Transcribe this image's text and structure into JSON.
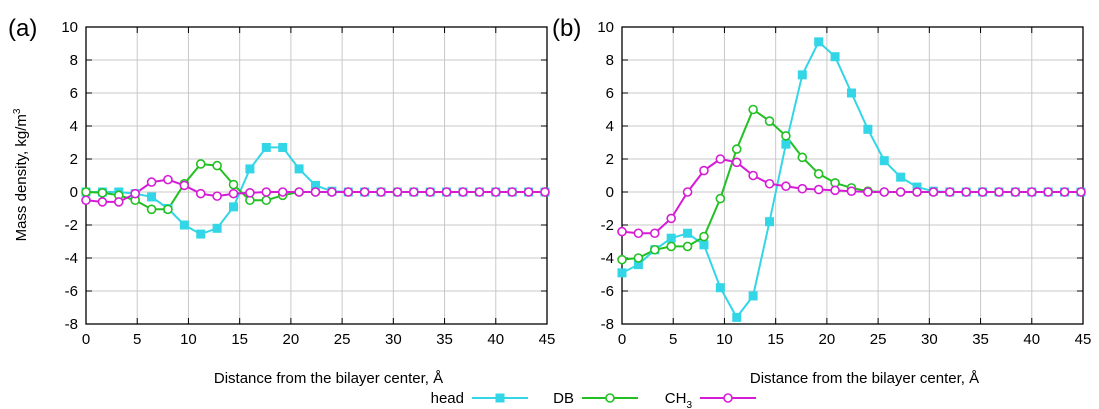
{
  "figure": {
    "ylabel": "Mass density, kg/m",
    "ylabel_sup": "3",
    "legend": [
      {
        "label": "head",
        "sub": ""
      },
      {
        "label": "DB",
        "sub": ""
      },
      {
        "label": "CH",
        "sub": "3"
      }
    ]
  },
  "chart_data": [
    {
      "type": "line",
      "panel_label": "(a)",
      "xlabel": "Distance from the bilayer center, Å",
      "ylabel": "Mass density, kg/m3",
      "xlim": [
        0,
        45
      ],
      "ylim": [
        -8,
        10
      ],
      "xticks": [
        "0",
        "5",
        "10",
        "15",
        "20",
        "25",
        "30",
        "35",
        "40",
        "45"
      ],
      "yticks": [
        "-8",
        "-6",
        "-4",
        "-2",
        "0",
        "2",
        "4",
        "6",
        "8",
        "10"
      ],
      "grid": true,
      "legend_position": "bottom-center",
      "series": [
        {
          "name": "head",
          "color": "#33d6e6",
          "marker": "filled-square",
          "x": [
            0,
            1.6,
            3.2,
            4.8,
            6.4,
            8,
            9.6,
            11.2,
            12.8,
            14.4,
            16,
            17.6,
            19.2,
            20.8,
            22.4,
            24,
            25.6,
            27.2,
            28.8,
            30.4,
            32,
            33.6,
            35.2,
            36.8,
            38.4,
            40,
            41.6,
            43.2,
            44.8
          ],
          "y": [
            0,
            0,
            0,
            -0.1,
            -0.3,
            -1,
            -2,
            -2.55,
            -2.2,
            -0.9,
            1.4,
            2.7,
            2.7,
            1.4,
            0.4,
            0.05,
            0,
            0,
            0,
            0,
            0,
            0,
            0,
            0,
            0,
            0,
            0,
            0,
            0
          ]
        },
        {
          "name": "DB",
          "color": "#22c022",
          "marker": "open-circle",
          "x": [
            0,
            1.6,
            3.2,
            4.8,
            6.4,
            8,
            9.6,
            11.2,
            12.8,
            14.4,
            16,
            17.6,
            19.2,
            20.8,
            22.4,
            24,
            25.6,
            27.2,
            28.8,
            30.4,
            32,
            33.6,
            35.2,
            36.8,
            38.4,
            40,
            41.6,
            43.2,
            44.8
          ],
          "y": [
            0,
            -0.05,
            -0.2,
            -0.5,
            -1.05,
            -1.05,
            0.5,
            1.7,
            1.6,
            0.45,
            -0.5,
            -0.5,
            -0.2,
            0,
            0,
            0,
            0,
            0,
            0,
            0,
            0,
            0,
            0,
            0,
            0,
            0,
            0,
            0,
            0
          ]
        },
        {
          "name": "CH3",
          "color": "#d61bd6",
          "marker": "open-circle",
          "x": [
            0,
            1.6,
            3.2,
            4.8,
            6.4,
            8,
            9.6,
            11.2,
            12.8,
            14.4,
            16,
            17.6,
            19.2,
            20.8,
            22.4,
            24,
            25.6,
            27.2,
            28.8,
            30.4,
            32,
            33.6,
            35.2,
            36.8,
            38.4,
            40,
            41.6,
            43.2,
            44.8
          ],
          "y": [
            -0.5,
            -0.6,
            -0.6,
            -0.1,
            0.6,
            0.75,
            0.4,
            -0.1,
            -0.25,
            -0.1,
            -0.05,
            0,
            0,
            0,
            0,
            0,
            0,
            0,
            0,
            0,
            0,
            0,
            0,
            0,
            0,
            0,
            0,
            0,
            0
          ]
        }
      ]
    },
    {
      "type": "line",
      "panel_label": "(b)",
      "xlabel": "Distance from the bilayer center, Å",
      "ylabel": "Mass density, kg/m3",
      "xlim": [
        0,
        45
      ],
      "ylim": [
        -8,
        10
      ],
      "xticks": [
        "0",
        "5",
        "10",
        "15",
        "20",
        "25",
        "30",
        "35",
        "40",
        "45"
      ],
      "yticks": [
        "-8",
        "-6",
        "-4",
        "-2",
        "0",
        "2",
        "4",
        "6",
        "8",
        "10"
      ],
      "grid": true,
      "legend_position": "bottom-center",
      "series": [
        {
          "name": "head",
          "color": "#33d6e6",
          "marker": "filled-square",
          "x": [
            0,
            1.6,
            3.2,
            4.8,
            6.4,
            8,
            9.6,
            11.2,
            12.8,
            14.4,
            16,
            17.6,
            19.2,
            20.8,
            22.4,
            24,
            25.6,
            27.2,
            28.8,
            30.4,
            32,
            33.6,
            35.2,
            36.8,
            38.4,
            40,
            41.6,
            43.2,
            44.8
          ],
          "y": [
            -4.9,
            -4.4,
            -3.5,
            -2.8,
            -2.5,
            -3.2,
            -5.8,
            -7.6,
            -6.3,
            -1.8,
            2.9,
            7.1,
            9.1,
            8.2,
            6,
            3.8,
            1.9,
            0.9,
            0.3,
            0.05,
            0,
            0,
            0,
            0,
            0,
            0,
            0,
            0,
            0
          ]
        },
        {
          "name": "DB",
          "color": "#22c022",
          "marker": "open-circle",
          "x": [
            0,
            1.6,
            3.2,
            4.8,
            6.4,
            8,
            9.6,
            11.2,
            12.8,
            14.4,
            16,
            17.6,
            19.2,
            20.8,
            22.4,
            24,
            25.6,
            27.2,
            28.8,
            30.4,
            32,
            33.6,
            35.2,
            36.8,
            38.4,
            40,
            41.6,
            43.2,
            44.8
          ],
          "y": [
            -4.1,
            -4.0,
            -3.5,
            -3.3,
            -3.3,
            -2.7,
            -0.4,
            2.6,
            5.0,
            4.3,
            3.4,
            2.1,
            1.1,
            0.55,
            0.25,
            0.05,
            0,
            0,
            0,
            0,
            0,
            0,
            0,
            0,
            0,
            0,
            0,
            0,
            0
          ]
        },
        {
          "name": "CH3",
          "color": "#d61bd6",
          "marker": "open-circle",
          "x": [
            0,
            1.6,
            3.2,
            4.8,
            6.4,
            8,
            9.6,
            11.2,
            12.8,
            14.4,
            16,
            17.6,
            19.2,
            20.8,
            22.4,
            24,
            25.6,
            27.2,
            28.8,
            30.4,
            32,
            33.6,
            35.2,
            36.8,
            38.4,
            40,
            41.6,
            43.2,
            44.8
          ],
          "y": [
            -2.4,
            -2.5,
            -2.5,
            -1.6,
            0,
            1.3,
            2.0,
            1.8,
            1.0,
            0.5,
            0.35,
            0.2,
            0.15,
            0.1,
            0.05,
            0,
            0,
            0,
            0,
            0,
            0,
            0,
            0,
            0,
            0,
            0,
            0,
            0,
            0
          ]
        }
      ]
    }
  ]
}
